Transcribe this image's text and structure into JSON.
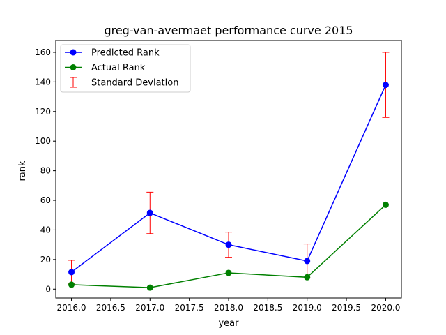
{
  "chart_data": {
    "type": "line",
    "title": "greg-van-avermaet performance curve 2015",
    "xlabel": "year",
    "ylabel": "rank",
    "xlim": [
      2015.8,
      2020.2
    ],
    "ylim": [
      -6,
      168
    ],
    "x_ticks": [
      2016.0,
      2016.5,
      2017.0,
      2017.5,
      2018.0,
      2018.5,
      2019.0,
      2019.5,
      2020.0
    ],
    "x_tick_labels": [
      "2016.0",
      "2016.5",
      "2017.0",
      "2017.5",
      "2018.0",
      "2018.5",
      "2019.0",
      "2019.5",
      "2020.0"
    ],
    "y_ticks": [
      0,
      20,
      40,
      60,
      80,
      100,
      120,
      140,
      160
    ],
    "y_tick_labels": [
      "0",
      "20",
      "40",
      "60",
      "80",
      "100",
      "120",
      "140",
      "160"
    ],
    "x": [
      2016,
      2017,
      2018,
      2019,
      2020
    ],
    "series": [
      {
        "name": "Predicted Rank",
        "color": "#0000ff",
        "values": [
          11.5,
          51.5,
          30,
          19,
          138
        ],
        "error": [
          8,
          14,
          8.5,
          11.5,
          22
        ]
      },
      {
        "name": "Actual Rank",
        "color": "#008000",
        "values": [
          3,
          1,
          11,
          8,
          57
        ]
      }
    ],
    "errorbar": {
      "name": "Standard Deviation",
      "color": "#ff0000"
    },
    "legend_position": "top-left",
    "grid": false
  }
}
